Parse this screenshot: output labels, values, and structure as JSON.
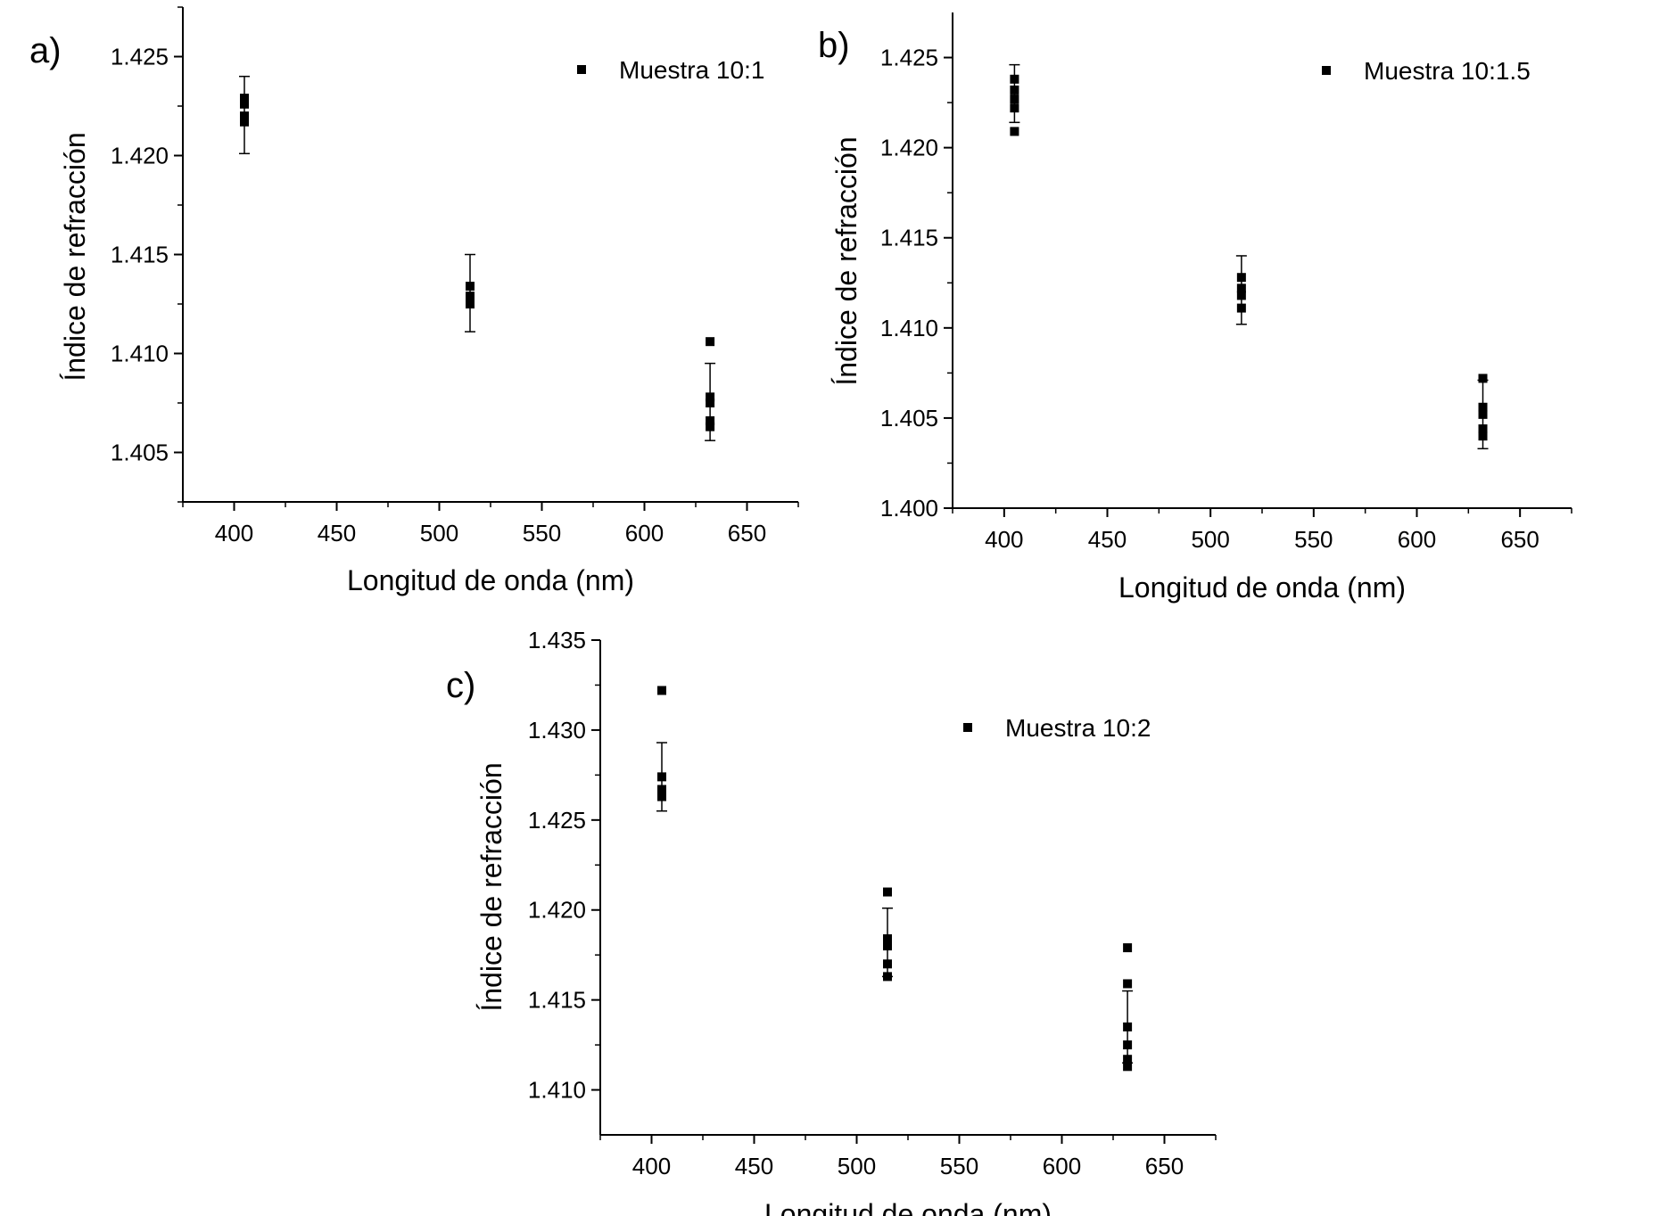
{
  "chart_data": [
    {
      "type": "scatter",
      "panel_label": "a)",
      "xlabel": "Longitud de onda (nm)",
      "ylabel": "Índice de refracción",
      "xlim": [
        375,
        675
      ],
      "ylim": [
        1.4025,
        1.4275
      ],
      "xticks": [
        400,
        450,
        500,
        550,
        600,
        650
      ],
      "xtick_labels": [
        "400",
        "450",
        "500",
        "550",
        "600",
        "650"
      ],
      "yticks": [
        1.405,
        1.41,
        1.415,
        1.42,
        1.425
      ],
      "ytick_labels": [
        "1.405",
        "1.410",
        "1.415",
        "1.420",
        "1.425"
      ],
      "legend": "top-right",
      "series": [
        {
          "name": "Muestra 10:1",
          "points": [
            {
              "x": 405,
              "y": 1.4229
            },
            {
              "x": 405,
              "y": 1.4226
            },
            {
              "x": 405,
              "y": 1.422
            },
            {
              "x": 405,
              "y": 1.4217
            },
            {
              "x": 515,
              "y": 1.4134
            },
            {
              "x": 515,
              "y": 1.4129
            },
            {
              "x": 515,
              "y": 1.4125
            },
            {
              "x": 632,
              "y": 1.4106
            },
            {
              "x": 632,
              "y": 1.4078
            },
            {
              "x": 632,
              "y": 1.4075
            },
            {
              "x": 632,
              "y": 1.4066
            },
            {
              "x": 632,
              "y": 1.4063
            }
          ],
          "error_bars": [
            {
              "x": 405,
              "mean": 1.422,
              "low": 1.4201,
              "high": 1.424
            },
            {
              "x": 515,
              "mean": 1.413,
              "low": 1.4111,
              "high": 1.415
            },
            {
              "x": 632,
              "mean": 1.4076,
              "low": 1.4056,
              "high": 1.4095
            }
          ]
        }
      ]
    },
    {
      "type": "scatter",
      "panel_label": "b)",
      "xlabel": "Longitud de onda (nm)",
      "ylabel": "Índice de refracción",
      "xlim": [
        375,
        675
      ],
      "ylim": [
        1.4,
        1.4275
      ],
      "xticks": [
        400,
        450,
        500,
        550,
        600,
        650
      ],
      "xtick_labels": [
        "400",
        "450",
        "500",
        "550",
        "600",
        "650"
      ],
      "yticks": [
        1.4,
        1.405,
        1.41,
        1.415,
        1.42,
        1.425
      ],
      "ytick_labels": [
        "1.400",
        "1.405",
        "1.410",
        "1.415",
        "1.420",
        "1.425"
      ],
      "legend": "top-right",
      "series": [
        {
          "name": "Muestra 10:1.5",
          "points": [
            {
              "x": 405,
              "y": 1.4238
            },
            {
              "x": 405,
              "y": 1.4232
            },
            {
              "x": 405,
              "y": 1.4227
            },
            {
              "x": 405,
              "y": 1.4222
            },
            {
              "x": 405,
              "y": 1.4209
            },
            {
              "x": 515,
              "y": 1.4128
            },
            {
              "x": 515,
              "y": 1.4122
            },
            {
              "x": 515,
              "y": 1.4118
            },
            {
              "x": 515,
              "y": 1.4111
            },
            {
              "x": 632,
              "y": 1.4072
            },
            {
              "x": 632,
              "y": 1.4056
            },
            {
              "x": 632,
              "y": 1.4052
            },
            {
              "x": 632,
              "y": 1.4044
            },
            {
              "x": 632,
              "y": 1.404
            }
          ],
          "error_bars": [
            {
              "x": 405,
              "mean": 1.423,
              "low": 1.4214,
              "high": 1.4246
            },
            {
              "x": 515,
              "mean": 1.4121,
              "low": 1.4102,
              "high": 1.414
            },
            {
              "x": 632,
              "mean": 1.4052,
              "low": 1.4033,
              "high": 1.4071
            }
          ]
        }
      ]
    },
    {
      "type": "scatter",
      "panel_label": "c)",
      "xlabel": "Longitud de onda (nm)",
      "ylabel": "Índice de refracción",
      "xlim": [
        375,
        675
      ],
      "ylim": [
        1.4075,
        1.435
      ],
      "xticks": [
        400,
        450,
        500,
        550,
        600,
        650
      ],
      "xtick_labels": [
        "400",
        "450",
        "500",
        "550",
        "600",
        "650"
      ],
      "yticks": [
        1.41,
        1.415,
        1.42,
        1.425,
        1.43,
        1.435
      ],
      "ytick_labels": [
        "1.410",
        "1.415",
        "1.420",
        "1.425",
        "1.430",
        "1.435"
      ],
      "legend": "top-right",
      "series": [
        {
          "name": "Muestra 10:2",
          "points": [
            {
              "x": 405,
              "y": 1.4322
            },
            {
              "x": 405,
              "y": 1.4274
            },
            {
              "x": 405,
              "y": 1.4267
            },
            {
              "x": 405,
              "y": 1.4263
            },
            {
              "x": 515,
              "y": 1.421
            },
            {
              "x": 515,
              "y": 1.4184
            },
            {
              "x": 515,
              "y": 1.418
            },
            {
              "x": 515,
              "y": 1.417
            },
            {
              "x": 515,
              "y": 1.4163
            },
            {
              "x": 632,
              "y": 1.4179
            },
            {
              "x": 632,
              "y": 1.4159
            },
            {
              "x": 632,
              "y": 1.4135
            },
            {
              "x": 632,
              "y": 1.4125
            },
            {
              "x": 632,
              "y": 1.4117
            },
            {
              "x": 632,
              "y": 1.4113
            }
          ],
          "error_bars": [
            {
              "x": 405,
              "mean": 1.4274,
              "low": 1.4255,
              "high": 1.4293
            },
            {
              "x": 515,
              "mean": 1.4182,
              "low": 1.4163,
              "high": 1.4201
            },
            {
              "x": 632,
              "mean": 1.4135,
              "low": 1.4115,
              "high": 1.4155
            }
          ]
        }
      ]
    }
  ]
}
